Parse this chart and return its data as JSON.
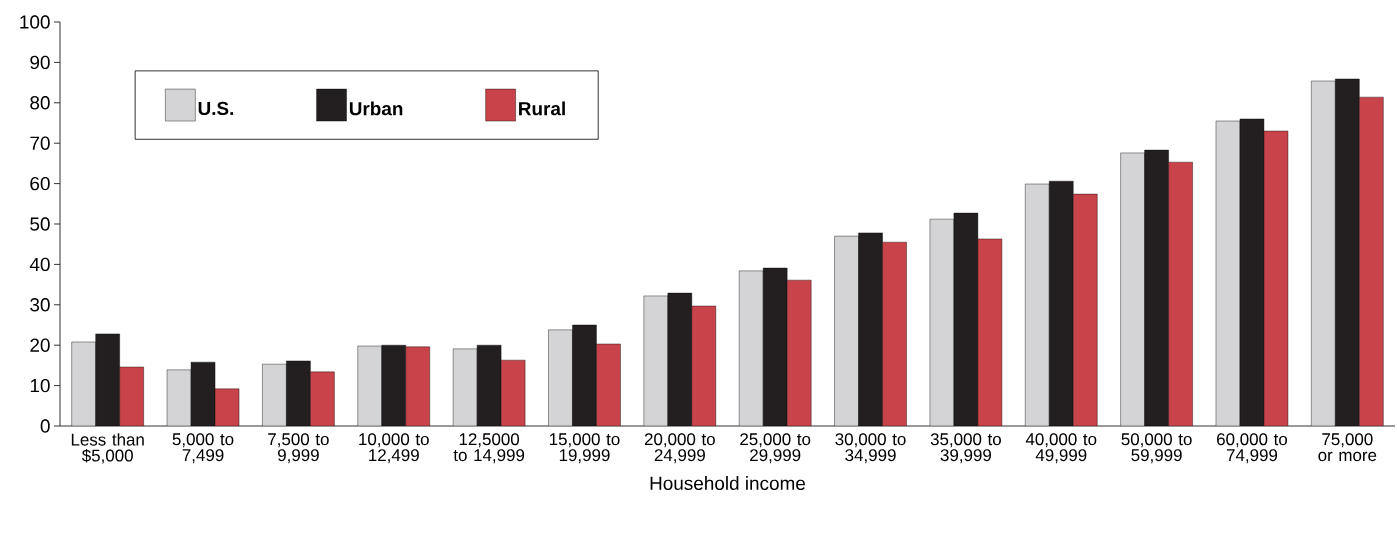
{
  "chart_data": {
    "type": "bar",
    "xlabel": "Household income",
    "categories": [
      "Less than $5,000",
      "5,000 to 7,499",
      "7,500 to 9,999",
      "10,000 to 12,499",
      "12,5000 to 14,999",
      "15,000 to 19,999",
      "20,000 to 24,999",
      "25,000 to 29,999",
      "30,000 to 34,999",
      "35,000 to 39,999",
      "40,000 to 49,999",
      "50,000 to 59,999",
      "60,000 to 74,999",
      "75,000 or more"
    ],
    "series": [
      {
        "name": "U.S.",
        "color": "#d4d4d6",
        "values": [
          20.8,
          13.9,
          15.3,
          19.8,
          19.1,
          23.8,
          32.2,
          38.4,
          47.0,
          51.2,
          59.9,
          67.6,
          75.5,
          85.4
        ]
      },
      {
        "name": "Urban",
        "color": "#231f20",
        "values": [
          22.8,
          15.8,
          16.1,
          20.0,
          20.0,
          25.0,
          32.9,
          39.1,
          47.8,
          52.7,
          60.6,
          68.3,
          76.0,
          85.9
        ]
      },
      {
        "name": "Rural",
        "color": "#c8434a",
        "values": [
          14.6,
          9.2,
          13.4,
          19.6,
          16.3,
          20.3,
          29.7,
          36.1,
          45.5,
          46.3,
          57.4,
          65.3,
          73.0,
          81.4
        ]
      }
    ],
    "ylim": [
      0,
      100
    ],
    "yticks": [
      0,
      10,
      20,
      30,
      40,
      50,
      60,
      70,
      80,
      90,
      100
    ],
    "legend": "top left"
  }
}
